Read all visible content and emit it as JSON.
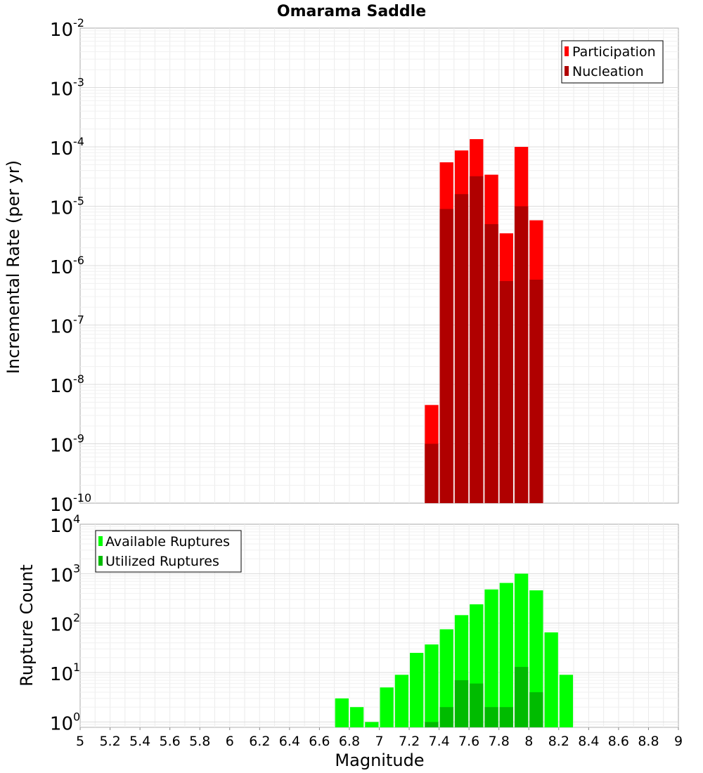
{
  "chart_data": [
    {
      "type": "bar",
      "title": "Omarama Saddle",
      "ylabel": "Incremental Rate (per yr)",
      "xlabel": "",
      "yscale": "log",
      "ylim": [
        1e-10,
        0.01
      ],
      "xlim": [
        5,
        9
      ],
      "bin_width": 0.1,
      "yticks": [
        {
          "base": "10",
          "exp": "-10"
        },
        {
          "base": "10",
          "exp": "-9"
        },
        {
          "base": "10",
          "exp": "-8"
        },
        {
          "base": "10",
          "exp": "-7"
        },
        {
          "base": "10",
          "exp": "-6"
        },
        {
          "base": "10",
          "exp": "-5"
        },
        {
          "base": "10",
          "exp": "-4"
        },
        {
          "base": "10",
          "exp": "-3"
        },
        {
          "base": "10",
          "exp": "-2"
        }
      ],
      "grid": true,
      "legend_position": "top-right",
      "series": [
        {
          "name": "Participation",
          "color": "#ff0000",
          "x": [
            7.35,
            7.45,
            7.55,
            7.65,
            7.75,
            7.85,
            7.95,
            8.05
          ],
          "values": [
            4.5e-09,
            5.5e-05,
            8.7e-05,
            0.000135,
            3.4e-05,
            3.5e-06,
            0.0001,
            5.8e-06
          ]
        },
        {
          "name": "Nucleation",
          "color": "#b00000",
          "x": [
            7.35,
            7.45,
            7.55,
            7.65,
            7.75,
            7.85,
            7.95,
            8.05
          ],
          "values": [
            1e-09,
            9e-06,
            1.6e-05,
            3.2e-05,
            5e-06,
            5.5e-07,
            1e-05,
            5.8e-07
          ]
        }
      ]
    },
    {
      "type": "bar",
      "title": "",
      "ylabel": "Rupture Count",
      "xlabel": "Magnitude",
      "yscale": "log",
      "ylim": [
        0.78,
        10000.0
      ],
      "xlim": [
        5,
        9
      ],
      "bin_width": 0.1,
      "yticks": [
        {
          "value": 1,
          "base": "10",
          "exp": "0"
        },
        {
          "value": 10,
          "base": "10",
          "exp": "1"
        },
        {
          "value": 100,
          "base": "10",
          "exp": "2"
        },
        {
          "value": 1000,
          "base": "10",
          "exp": "3"
        },
        {
          "value": 10000,
          "base": "10",
          "exp": "4"
        }
      ],
      "xticks": [
        "5",
        "5.2",
        "5.4",
        "5.6",
        "5.8",
        "6",
        "6.2",
        "6.4",
        "6.6",
        "6.8",
        "7",
        "7.2",
        "7.4",
        "7.6",
        "7.8",
        "8",
        "8.2",
        "8.4",
        "8.6",
        "8.8",
        "9"
      ],
      "grid": true,
      "legend_position": "top-left",
      "series": [
        {
          "name": "Available Ruptures",
          "color": "#00ff00",
          "x": [
            6.75,
            6.85,
            6.95,
            7.05,
            7.15,
            7.25,
            7.35,
            7.45,
            7.55,
            7.65,
            7.75,
            7.85,
            7.95,
            8.05,
            8.15,
            8.25
          ],
          "values": [
            3,
            2,
            1,
            5,
            9,
            25,
            37,
            75,
            145,
            240,
            480,
            650,
            1000,
            460,
            65,
            9
          ]
        },
        {
          "name": "Utilized Ruptures",
          "color": "#00bb00",
          "x": [
            7.35,
            7.45,
            7.55,
            7.65,
            7.75,
            7.85,
            7.95,
            8.05
          ],
          "values": [
            1,
            2,
            7,
            6,
            2,
            2,
            13,
            4
          ]
        }
      ]
    }
  ]
}
